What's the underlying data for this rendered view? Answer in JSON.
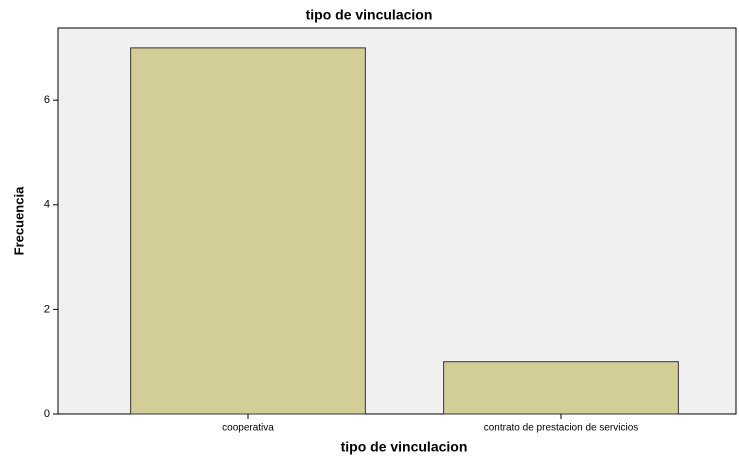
{
  "chart_data": {
    "type": "bar",
    "title": "tipo de vinculacion",
    "x_label": "tipo de vinculacion",
    "y_label": "Frecuencia",
    "categories": [
      "cooperativa",
      "contrato de prestacion de servicios"
    ],
    "values": [
      7,
      1
    ],
    "color": "#d3cd98",
    "ylim": [
      0,
      7.38
    ],
    "yticks": [
      0,
      2,
      4,
      6
    ],
    "grid": false
  }
}
